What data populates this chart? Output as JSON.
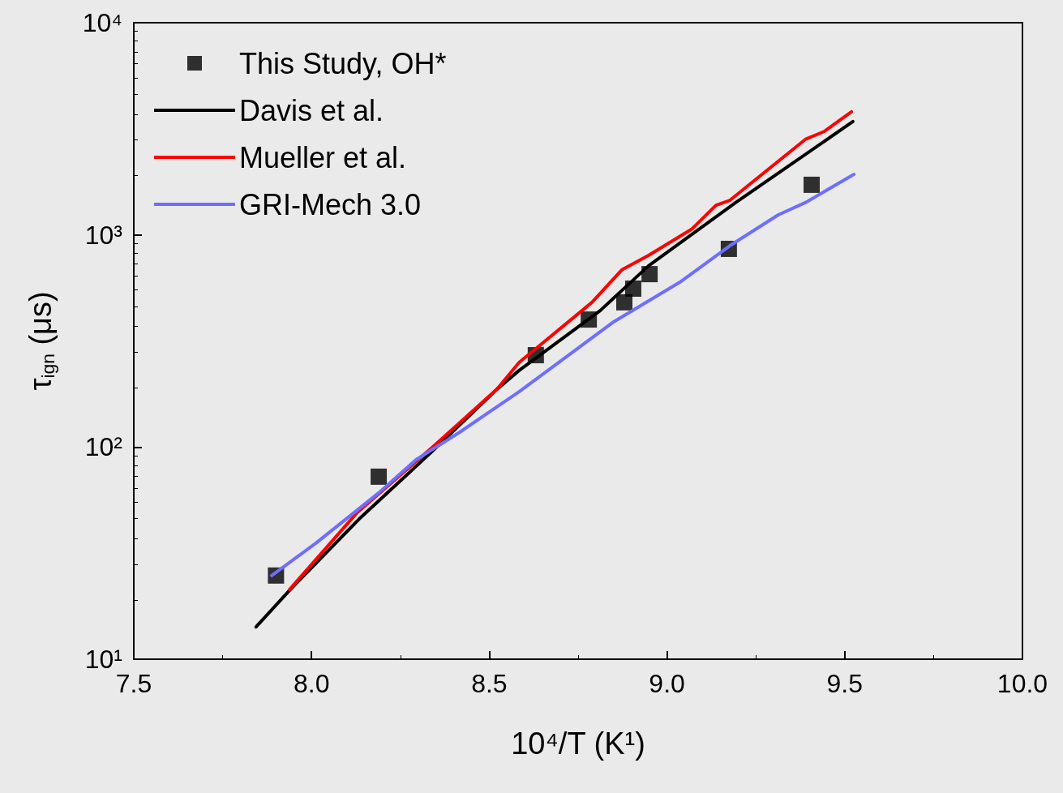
{
  "chart_data": {
    "type": "line",
    "xlabel": "10⁴/T (K¹)",
    "ylabel": "τ$_{ign}$ (μs)",
    "xlim": [
      7.5,
      10.0
    ],
    "xticks": [
      {
        "value": 7.5,
        "label": "7.5"
      },
      {
        "value": 8.0,
        "label": "8.0"
      },
      {
        "value": 8.5,
        "label": "8.5"
      },
      {
        "value": 9.0,
        "label": "9.0"
      },
      {
        "value": 9.5,
        "label": "9.5"
      },
      {
        "value": 10.0,
        "label": "10.0"
      }
    ],
    "ylim": [
      10,
      10000
    ],
    "yticks": [
      {
        "value": 10,
        "label": "10¹"
      },
      {
        "value": 100,
        "label": "10²"
      },
      {
        "value": 1000,
        "label": "10³"
      },
      {
        "value": 10000,
        "label": "10⁴"
      }
    ],
    "log": "y",
    "grid": false,
    "legend": "top left",
    "series": [
      {
        "name": "This Study, OH*",
        "type": "scatter",
        "marker": "square",
        "color": "#000000",
        "x": [
          7.9,
          8.189,
          8.631,
          8.78,
          8.88,
          8.905,
          8.951,
          9.174,
          9.407
        ],
        "values": [
          24.8,
          72.5,
          271,
          399,
          481,
          558,
          653,
          859,
          1722
        ]
      },
      {
        "name": "Davis et al.",
        "line_style": "solid",
        "color": "#000000",
        "x": [
          7.844,
          7.938,
          8.134,
          8.339,
          8.522,
          8.584,
          8.812,
          8.948,
          9.193,
          9.523
        ],
        "values": [
          14.2,
          21.1,
          45.8,
          95.3,
          187.5,
          229.6,
          439.5,
          714.5,
          1419,
          3420
        ]
      },
      {
        "name": "Mueller et al.",
        "line_style": "solid",
        "color": "#ff0000",
        "x": [
          7.938,
          8.127,
          8.339,
          8.522,
          8.584,
          8.789,
          8.873,
          8.948,
          9.069,
          9.138,
          9.177,
          9.389,
          9.443,
          9.519
        ],
        "values": [
          21.3,
          48.8,
          99.5,
          187.6,
          250.6,
          481,
          684,
          800,
          1062,
          1380,
          1455,
          2818,
          3076,
          3801
        ]
      },
      {
        "name": "GRI-Mech 3.0",
        "line_style": "solid",
        "color": "#6e6eff",
        "x": [
          7.888,
          8.013,
          8.189,
          8.294,
          8.417,
          8.584,
          8.85,
          9.04,
          9.177,
          9.313,
          9.389,
          9.526
        ],
        "values": [
          24.8,
          35.3,
          60.8,
          87.1,
          117.5,
          182.4,
          389,
          604,
          889,
          1242,
          1419,
          1928
        ]
      }
    ]
  }
}
